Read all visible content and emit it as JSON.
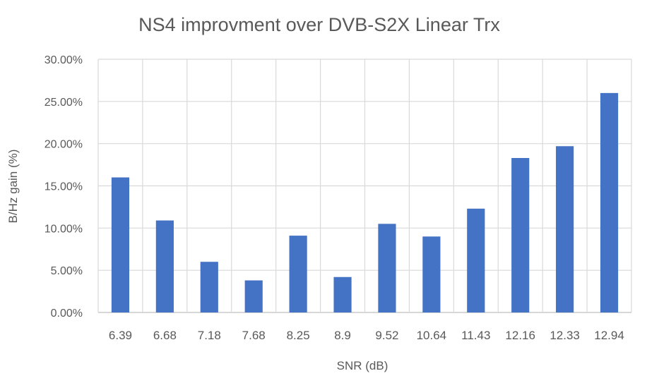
{
  "chart_data": {
    "type": "bar",
    "title": "NS4 improvment over DVB-S2X Linear Trx",
    "xlabel": "SNR (dB)",
    "ylabel": "B/Hz gain (%)",
    "categories": [
      "6.39",
      "6.68",
      "7.18",
      "7.68",
      "8.25",
      "8.9",
      "9.52",
      "10.64",
      "11.43",
      "12.16",
      "12.33",
      "12.94"
    ],
    "values": [
      16.0,
      10.9,
      6.0,
      3.8,
      9.1,
      4.2,
      10.5,
      9.0,
      12.3,
      18.3,
      19.7,
      26.0
    ],
    "ylim": [
      0,
      30
    ],
    "yticks": [
      "0.00%",
      "5.00%",
      "10.00%",
      "15.00%",
      "20.00%",
      "25.00%",
      "30.00%"
    ],
    "grid": "on",
    "legend": "none",
    "bar_color": "#4472C4"
  }
}
